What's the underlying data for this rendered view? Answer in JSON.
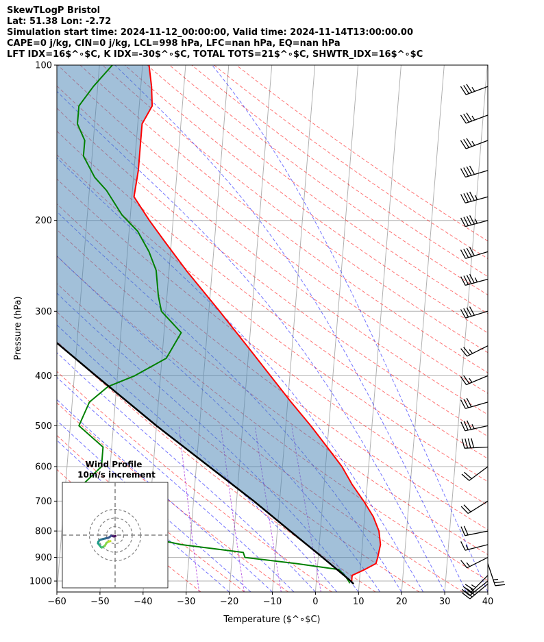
{
  "header": {
    "line1": "SkewTLogP Bristol",
    "line2": "Lat: 51.38   Lon: -2.72",
    "line3": "Simulation start time: 2024-11-12_00:00:00, Valid time: 2024-11-14T13:00:00.00",
    "line4": "CAPE=0 j/kg, CIN=0 j/kg, LCL=998 hPa, LFC=nan hPa, EQ=nan hPa",
    "line5": "LFT IDX=16$^∘$C, K IDX=-30$^∘$C, TOTAL TOTS=21$^∘$C, SHWTR_IDX=16$^∘$C"
  },
  "chart_data": {
    "type": "line",
    "subtype": "skew-T log-P",
    "xlabel": "Temperature ($^∘$C)",
    "ylabel": "Pressure (hPa)",
    "xlim": [
      -60,
      40
    ],
    "ylim": [
      1050,
      100
    ],
    "y_scale": "log",
    "grid": true,
    "x_ticks": [
      "−60",
      "−50",
      "−40",
      "−30",
      "−20",
      "−10",
      "0",
      "10",
      "20",
      "30",
      "40"
    ],
    "y_ticks": [
      "100",
      "200",
      "300",
      "400",
      "500",
      "600",
      "700",
      "800",
      "900",
      "1000"
    ],
    "series": [
      {
        "color": "#ff0000",
        "points": [
          [
            1000,
            8.2
          ],
          [
            975,
            8.2
          ],
          [
            950,
            11
          ],
          [
            925,
            13.5
          ],
          [
            900,
            13.8
          ],
          [
            850,
            14.2
          ],
          [
            800,
            13.6
          ],
          [
            750,
            12
          ],
          [
            700,
            9.5
          ],
          [
            650,
            6.5
          ],
          [
            600,
            3.8
          ],
          [
            550,
            0
          ],
          [
            500,
            -4.2
          ],
          [
            450,
            -9.2
          ],
          [
            400,
            -14.5
          ],
          [
            350,
            -20.5
          ],
          [
            300,
            -27.5
          ],
          [
            250,
            -36
          ],
          [
            220,
            -41.5
          ],
          [
            200,
            -45.5
          ],
          [
            180,
            -49.5
          ],
          [
            160,
            -49
          ],
          [
            150,
            -49
          ],
          [
            140,
            -49
          ],
          [
            130,
            -49
          ],
          [
            120,
            -47
          ],
          [
            110,
            -47.5
          ],
          [
            100,
            -48.5
          ]
        ]
      },
      {
        "color": "#008000",
        "points": [
          [
            1010,
            7.8
          ],
          [
            1000,
            7.5
          ],
          [
            975,
            6.5
          ],
          [
            950,
            5
          ],
          [
            925,
            -5
          ],
          [
            900,
            -17
          ],
          [
            880,
            -17.5
          ],
          [
            850,
            -32
          ],
          [
            800,
            -47
          ],
          [
            750,
            -56
          ],
          [
            700,
            -58
          ],
          [
            650,
            -56
          ],
          [
            600,
            -52
          ],
          [
            550,
            -52
          ],
          [
            500,
            -58
          ],
          [
            450,
            -56
          ],
          [
            420,
            -52
          ],
          [
            400,
            -46
          ],
          [
            370,
            -39
          ],
          [
            330,
            -36
          ],
          [
            300,
            -41
          ],
          [
            280,
            -42
          ],
          [
            250,
            -43
          ],
          [
            230,
            -45
          ],
          [
            210,
            -48
          ],
          [
            195,
            -52
          ],
          [
            175,
            -56
          ],
          [
            165,
            -59
          ],
          [
            150,
            -62
          ],
          [
            140,
            -62
          ],
          [
            130,
            -64
          ],
          [
            120,
            -64
          ],
          [
            110,
            -61
          ],
          [
            100,
            -57
          ]
        ]
      },
      {
        "color": "#000000",
        "points": [
          [
            1013,
            8.7
          ],
          [
            1000,
            8
          ],
          [
            900,
            1
          ],
          [
            800,
            -7
          ],
          [
            700,
            -16
          ],
          [
            600,
            -27
          ],
          [
            500,
            -40
          ],
          [
            400,
            -55
          ],
          [
            300,
            -74
          ],
          [
            200,
            -97
          ],
          [
            100,
            -120
          ]
        ]
      }
    ],
    "fill_between_parcel_and_temperature": "#4682b4",
    "wind_barbs": [
      {
        "p": 1013,
        "u": 12,
        "v": 10
      },
      {
        "p": 1000,
        "u": 10,
        "v": 8
      },
      {
        "p": 975,
        "u": 10,
        "v": 10
      },
      {
        "p": 925,
        "u": -4,
        "v": 12
      },
      {
        "p": 900,
        "u": 8,
        "v": 4
      },
      {
        "p": 850,
        "u": 8,
        "v": 2
      },
      {
        "p": 800,
        "u": 10,
        "v": 2
      },
      {
        "p": 700,
        "u": 8,
        "v": 5
      },
      {
        "p": 600,
        "u": 8,
        "v": 6
      },
      {
        "p": 550,
        "u": 20,
        "v": 1
      },
      {
        "p": 500,
        "u": 18,
        "v": 4
      },
      {
        "p": 450,
        "u": 14,
        "v": 4
      },
      {
        "p": 400,
        "u": 12,
        "v": 5
      },
      {
        "p": 350,
        "u": 12,
        "v": 6
      },
      {
        "p": 300,
        "u": 20,
        "v": 6
      },
      {
        "p": 260,
        "u": 22,
        "v": 6
      },
      {
        "p": 230,
        "u": 20,
        "v": 6
      },
      {
        "p": 200,
        "u": 22,
        "v": 6
      },
      {
        "p": 180,
        "u": 22,
        "v": 6
      },
      {
        "p": 160,
        "u": 20,
        "v": 6
      },
      {
        "p": 140,
        "u": 16,
        "v": 6
      },
      {
        "p": 125,
        "u": 16,
        "v": 6
      },
      {
        "p": 110,
        "u": 16,
        "v": 6
      }
    ],
    "hodograph": {
      "title": "Wind Profile",
      "subtitle": "10m/s increment",
      "rings": [
        10,
        20,
        30
      ],
      "points": [
        [
          0.5,
          -1.0
        ],
        [
          -1.0,
          -1.5
        ],
        [
          -2.0,
          -1.5
        ],
        [
          -3.0,
          -1.2
        ],
        [
          -4.5,
          -0.5
        ],
        [
          -5.5,
          -1.5
        ],
        [
          -7.5,
          -3.0
        ],
        [
          -11.0,
          -3.8
        ],
        [
          -14.0,
          -4.5
        ],
        [
          -17.5,
          -5.5
        ],
        [
          -19.5,
          -7.5
        ],
        [
          -20.0,
          -9.5
        ],
        [
          -18.5,
          -11.5
        ],
        [
          -16.5,
          -14.0
        ],
        [
          -15.5,
          -14.5
        ],
        [
          -12.0,
          -12.5
        ],
        [
          -10.0,
          -9.0
        ],
        [
          -7.5,
          -7.5
        ],
        [
          -5.5,
          -7.0
        ]
      ]
    }
  }
}
